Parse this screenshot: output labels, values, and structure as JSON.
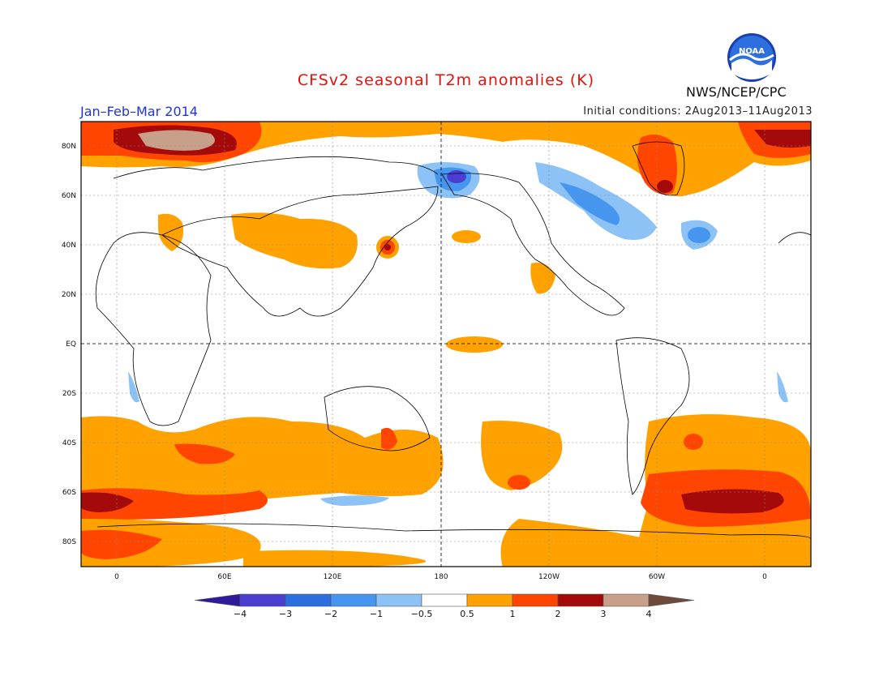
{
  "header": {
    "title": "CFSv2 seasonal T2m anomalies (K)",
    "period": "Jan–Feb–Mar 2014",
    "initial_conditions": "Initial conditions: 2Aug2013–11Aug2013",
    "agency": "NWS/NCEP/CPC",
    "logo_text": "NOAA"
  },
  "axes": {
    "lat_labels": [
      "80N",
      "60N",
      "40N",
      "20N",
      "EQ",
      "20S",
      "40S",
      "60S",
      "80S"
    ],
    "lon_labels": [
      "0",
      "60E",
      "120E",
      "180",
      "120W",
      "60W",
      "0"
    ]
  },
  "colorbar": {
    "levels": [
      "-4",
      "-3",
      "-2",
      "-1",
      "-0.5",
      "0.5",
      "1",
      "2",
      "3",
      "4"
    ],
    "colors": [
      "#2e1a9a",
      "#4a3fd0",
      "#2a6ee0",
      "#4696f0",
      "#8cc2f5",
      "#ffffff",
      "#ffa200",
      "#ff4500",
      "#a50a0a",
      "#c8a08a",
      "#6e4a3a"
    ]
  },
  "colors": {
    "warm1": "#ffa200",
    "warm2": "#ff4500",
    "warm3": "#a50a0a",
    "warm4": "#c8a08a",
    "cold1": "#8cc2f5",
    "cold2": "#4696f0",
    "cold3": "#2a6ee0",
    "cold4": "#4a3fd0"
  }
}
